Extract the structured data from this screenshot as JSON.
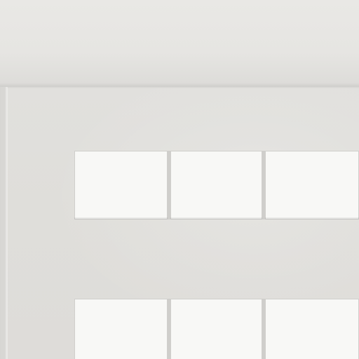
{
  "scene": {
    "description_colors": {
      "ceiling": "#e7e6e3",
      "wall": "#e0dfdc",
      "pane": "#f8f8f6",
      "mullion": "#cfcecb"
    }
  }
}
